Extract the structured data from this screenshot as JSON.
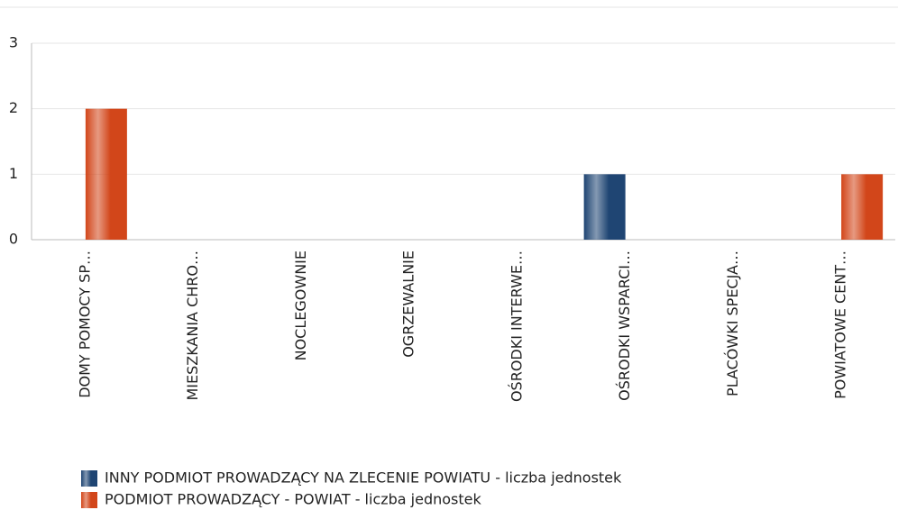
{
  "chart_data": {
    "type": "bar",
    "categories": [
      "DOMY POMOCY SP…",
      "MIESZKANIA CHRO…",
      "NOCLEGOWNIE",
      "OGRZEWALNIE",
      "OŚRODKI INTERWE…",
      "OŚRODKI WSPARCI…",
      "PLACÓWKI SPECJA…",
      "POWIATOWE CENT…"
    ],
    "series": [
      {
        "name": "INNY PODMIOT PROWADZĄCY NA ZLECENIE POWIATU - liczba jednostek",
        "color": "#1f4573",
        "values": [
          0,
          0,
          0,
          0,
          0,
          1,
          0,
          0
        ]
      },
      {
        "name": "PODMIOT PROWADZĄCY - POWIAT - liczba jednostek",
        "color": "#d2461a",
        "values": [
          2,
          0,
          0,
          0,
          0,
          0,
          0,
          1
        ]
      }
    ],
    "ylim": [
      0,
      3
    ],
    "yticks": [
      0,
      1,
      2,
      3
    ],
    "grid": true
  }
}
